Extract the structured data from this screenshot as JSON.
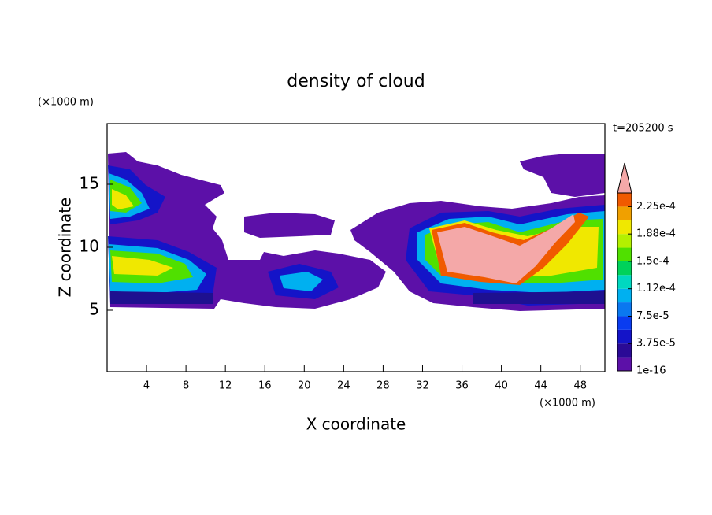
{
  "chart_data": {
    "type": "contour",
    "title": "density of cloud",
    "time_label": "t=205200 s",
    "x_label": "X coordinate",
    "y_label": "Z coordinate",
    "x_unit": "(×1000 m)",
    "y_unit": "(×1000 m)",
    "xlim": [
      0,
      50.5
    ],
    "ylim": [
      0,
      20
    ],
    "xticks": [
      4,
      8,
      12,
      16,
      20,
      24,
      28,
      32,
      36,
      40,
      44,
      48
    ],
    "yticks": [
      5,
      10,
      15
    ],
    "colorbar": {
      "levels": [
        1e-16,
        1.875e-05,
        3.75e-05,
        5.625e-05,
        7.5e-05,
        9.375e-05,
        0.0001125,
        0.00013125,
        0.00015,
        0.00016875,
        0.0001875,
        0.00020625,
        0.000225,
        0.00024375
      ],
      "colors": [
        "#5c10a8",
        "#2a0a96",
        "#1414c8",
        "#0a3cf0",
        "#0a78f0",
        "#00b0f0",
        "#00d8c0",
        "#00d25a",
        "#50e000",
        "#b4f000",
        "#f0e800",
        "#f0a000",
        "#f05a00"
      ],
      "over_color": "#f4a8a8",
      "ticks": [
        {
          "value": 1e-16,
          "label": "1e-16"
        },
        {
          "value": 3.75e-05,
          "label": "3.75e-5"
        },
        {
          "value": 7.5e-05,
          "label": "7.5e-5"
        },
        {
          "value": 0.0001125,
          "label": "1.12e-4"
        },
        {
          "value": 0.00015,
          "label": "1.5e-4"
        },
        {
          "value": 0.0001875,
          "label": "1.88e-4"
        },
        {
          "value": 0.000225,
          "label": "2.25e-4"
        }
      ]
    }
  }
}
